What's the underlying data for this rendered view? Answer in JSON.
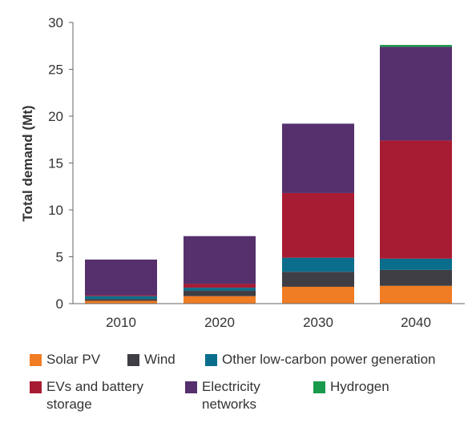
{
  "chart_data": {
    "type": "stacked-bar",
    "categories": [
      "2010",
      "2020",
      "2030",
      "2040"
    ],
    "ylabel": "Total demand (Mt)",
    "ylim": [
      0,
      30
    ],
    "yticks": [
      "0",
      "5",
      "10",
      "15",
      "20",
      "25",
      "30"
    ],
    "grid": false,
    "legend_position": "bottom",
    "series": [
      {
        "name": "Solar PV",
        "color": "#f07c23",
        "values": [
          0.3,
          0.8,
          1.8,
          1.9
        ]
      },
      {
        "name": "Wind",
        "color": "#3e3e44",
        "values": [
          0.2,
          0.6,
          1.6,
          1.7
        ]
      },
      {
        "name": "Other low-carbon power generation",
        "color": "#0a6d8c",
        "values": [
          0.3,
          0.3,
          1.5,
          1.2
        ]
      },
      {
        "name": "EVs and battery storage",
        "color": "#a81c33",
        "values": [
          0.1,
          0.4,
          6.9,
          12.6
        ]
      },
      {
        "name": "Electricity networks",
        "color": "#55306d",
        "values": [
          3.8,
          5.1,
          7.4,
          10.0
        ]
      },
      {
        "name": "Hydrogen",
        "color": "#1a9a4c",
        "values": [
          0.0,
          0.0,
          0.0,
          0.2
        ]
      }
    ]
  },
  "legend": [
    {
      "label": "Solar PV"
    },
    {
      "label": "Wind"
    },
    {
      "label": "Other low-carbon power generation"
    },
    {
      "label": "EVs and battery\nstorage"
    },
    {
      "label": "Electricity\nnetworks"
    },
    {
      "label": "Hydrogen"
    }
  ]
}
